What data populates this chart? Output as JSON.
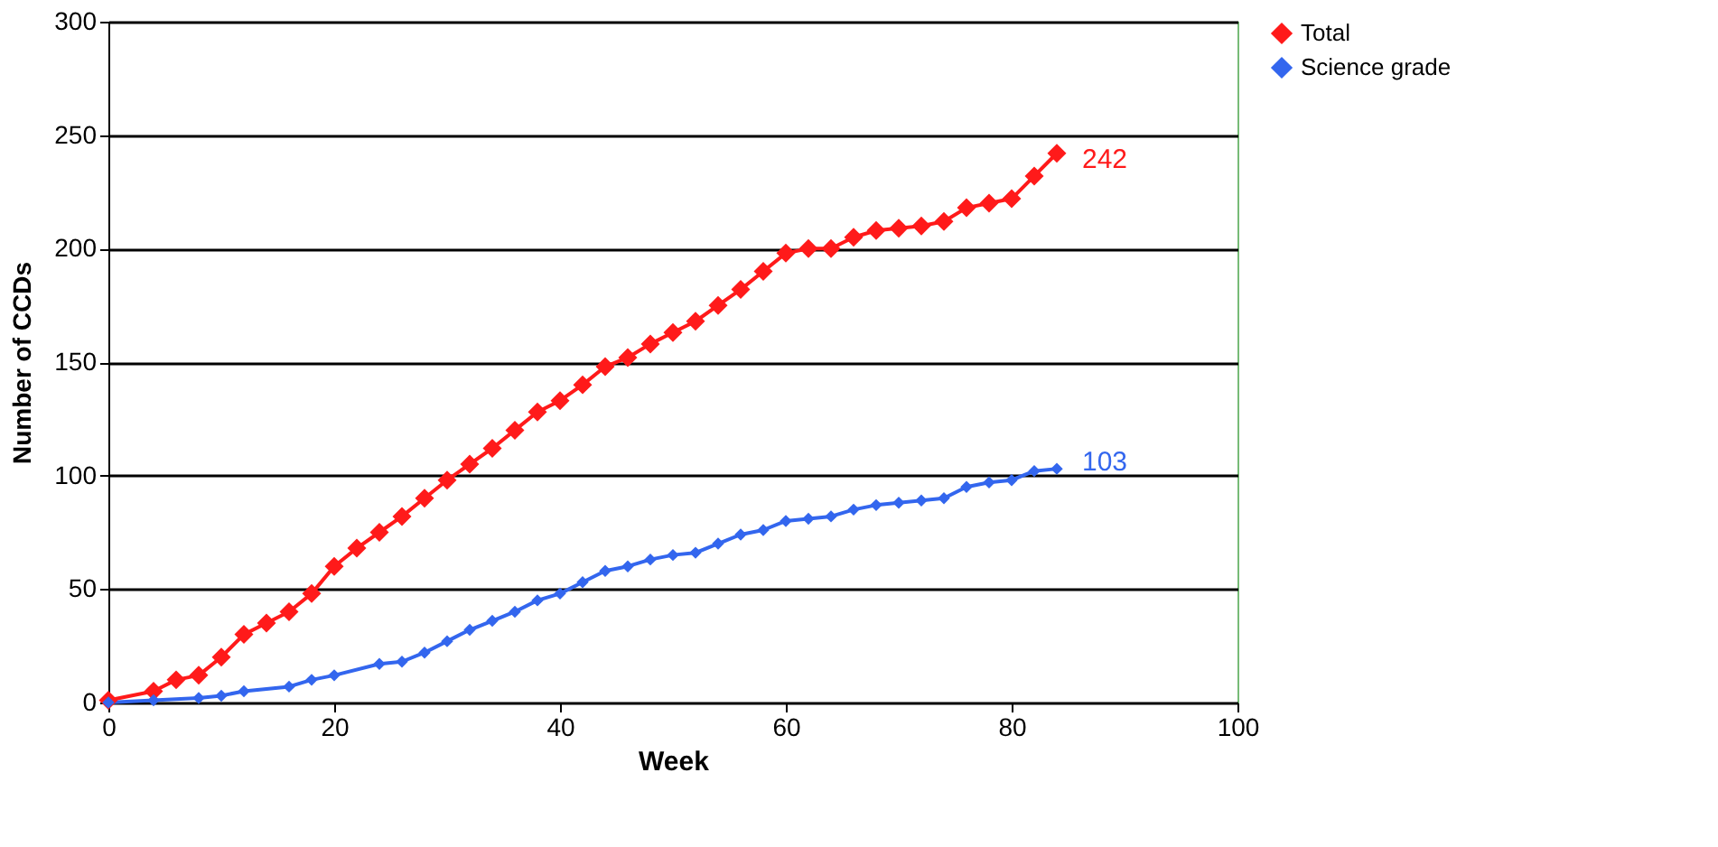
{
  "chart_data": {
    "type": "line",
    "xlabel": "Week",
    "ylabel": "Number of CCDs",
    "xlim": [
      0,
      100
    ],
    "xticks": [
      0,
      20,
      40,
      60,
      80,
      100
    ],
    "ylim": [
      0,
      300
    ],
    "yticks": [
      0,
      50,
      100,
      150,
      200,
      250,
      300
    ],
    "grid": "y",
    "legend": "right",
    "marker": "diamond",
    "line_style": "solid",
    "series": [
      {
        "name": "Total",
        "color": "#ff1a1a",
        "x": [
          0,
          4,
          6,
          8,
          10,
          12,
          14,
          16,
          18,
          20,
          22,
          24,
          26,
          28,
          30,
          32,
          34,
          36,
          38,
          40,
          42,
          44,
          46,
          48,
          50,
          52,
          54,
          56,
          58,
          60,
          62,
          64,
          66,
          68,
          70,
          72,
          74,
          76,
          78,
          80,
          82,
          84
        ],
        "values": [
          1,
          5,
          10,
          12,
          20,
          30,
          35,
          40,
          48,
          60,
          68,
          75,
          82,
          90,
          98,
          105,
          112,
          120,
          128,
          133,
          140,
          148,
          152,
          158,
          163,
          168,
          175,
          182,
          190,
          198,
          200,
          200,
          205,
          208,
          209,
          210,
          212,
          218,
          220,
          222,
          232,
          242
        ]
      },
      {
        "name": "Science grade",
        "color": "#3366ee",
        "x": [
          0,
          4,
          8,
          10,
          12,
          16,
          18,
          20,
          24,
          26,
          28,
          30,
          32,
          34,
          36,
          38,
          40,
          42,
          44,
          46,
          48,
          50,
          52,
          54,
          56,
          58,
          60,
          62,
          64,
          66,
          68,
          70,
          72,
          74,
          76,
          78,
          80,
          82,
          84
        ],
        "values": [
          0,
          1,
          2,
          3,
          5,
          7,
          10,
          12,
          17,
          18,
          22,
          27,
          32,
          36,
          40,
          45,
          48,
          53,
          58,
          60,
          63,
          65,
          66,
          70,
          74,
          76,
          80,
          81,
          82,
          85,
          87,
          88,
          89,
          90,
          95,
          97,
          98,
          102,
          103
        ]
      }
    ],
    "annotations": [
      {
        "text": "242",
        "x": 84,
        "y": 242
      },
      {
        "text": "103",
        "x": 84,
        "y": 103
      }
    ]
  }
}
